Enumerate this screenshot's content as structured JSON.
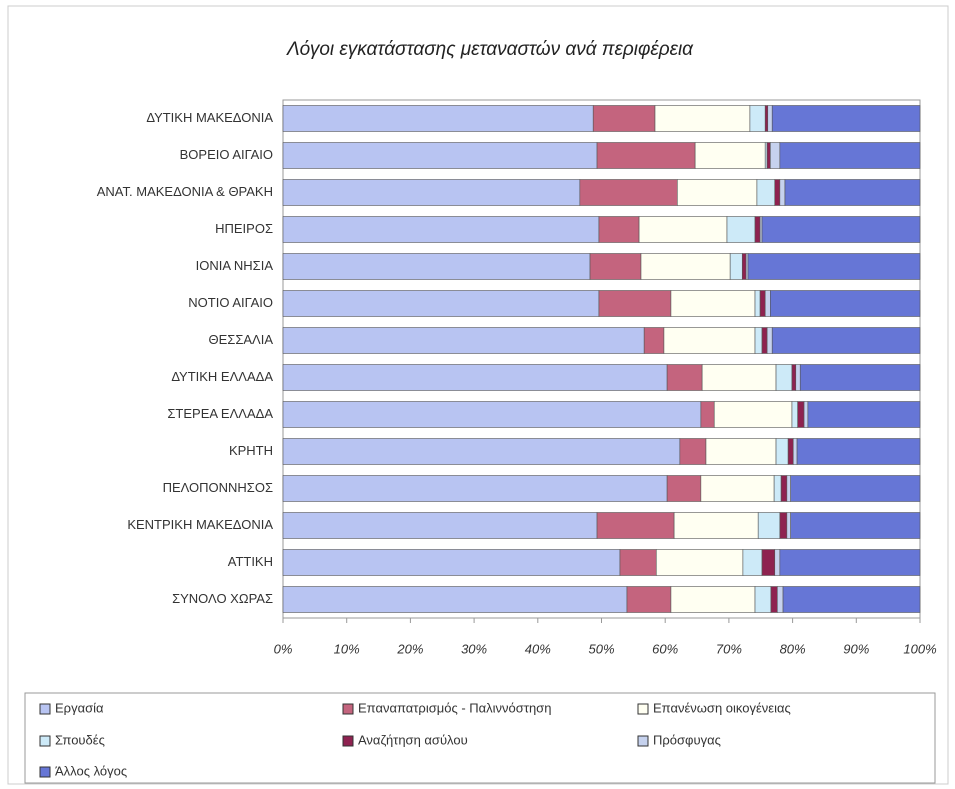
{
  "chart_data": {
    "type": "stacked_bar_horizontal",
    "title": "Λόγοι εγκατάστασης μεταναστών ανά περιφέρεια",
    "categories": [
      "ΔΥΤΙΚΗ ΜΑΚΕΔΟΝΙΑ",
      "ΒΟΡΕΙΟ ΑΙΓΑΙΟ",
      "ΑΝΑΤ. ΜΑΚΕΔΟΝΙΑ & ΘΡΑΚΗ",
      "ΗΠΕΙΡΟΣ",
      "ΙΟΝΙΑ ΝΗΣΙΑ",
      "ΝΟΤΙΟ ΑΙΓΑΙΟ",
      "ΘΕΣΣΑΛΙΑ",
      "ΔΥΤΙΚΗ ΕΛΛΑΔΑ",
      "ΣΤΕΡΕΑ ΕΛΛΑΔΑ",
      "ΚΡΗΤΗ",
      "ΠΕΛΟΠΟΝΝΗΣΟΣ",
      "ΚΕΝΤΡΙΚΗ ΜΑΚΕΔΟΝΙΑ",
      "ΑΤΤΙΚΗ",
      "ΣΥΝΟΛΟ ΧΩΡΑΣ"
    ],
    "series": [
      {
        "name": "Εργασία",
        "color": "#b8c4f2",
        "values": [
          48.7,
          49.3,
          46.6,
          49.6,
          48.2,
          49.6,
          56.7,
          60.3,
          65.6,
          62.3,
          60.3,
          49.3,
          52.9,
          54.0
        ]
      },
      {
        "name": "Επαναπατρισμός - Παλιννόστηση",
        "color": "#c4647e",
        "values": [
          9.7,
          15.4,
          15.3,
          6.3,
          8.0,
          11.3,
          3.1,
          5.5,
          2.1,
          4.1,
          5.3,
          12.1,
          5.7,
          6.9
        ]
      },
      {
        "name": "Επανένωση οικογένειας",
        "color": "#fffff2",
        "values": [
          14.9,
          11.0,
          12.5,
          13.8,
          14.0,
          13.2,
          14.3,
          11.6,
          12.2,
          11.0,
          11.5,
          13.2,
          13.6,
          13.2
        ]
      },
      {
        "name": "Σπουδές",
        "color": "#cdeaf8",
        "values": [
          2.4,
          0.3,
          2.8,
          4.4,
          1.9,
          0.8,
          1.1,
          2.5,
          0.9,
          1.9,
          1.1,
          3.4,
          3.0,
          2.5
        ]
      },
      {
        "name": "Αναζήτηση ασύλου",
        "color": "#8e2250",
        "values": [
          0.4,
          0.5,
          0.8,
          0.8,
          0.6,
          0.8,
          0.8,
          0.6,
          1.0,
          0.8,
          0.9,
          1.1,
          2.0,
          1.0
        ]
      },
      {
        "name": "Πρόσφυγας",
        "color": "#c6d2ee",
        "values": [
          0.7,
          1.5,
          0.8,
          0.3,
          0.3,
          0.8,
          0.8,
          0.7,
          0.6,
          0.6,
          0.6,
          0.6,
          0.8,
          0.9
        ]
      },
      {
        "name": "Άλλος λόγος",
        "color": "#6676d6",
        "values": [
          23.2,
          22.0,
          21.2,
          24.8,
          27.0,
          23.5,
          23.2,
          18.8,
          17.6,
          19.3,
          20.3,
          20.3,
          22.0,
          21.5
        ]
      }
    ],
    "xlim": [
      0,
      100
    ],
    "xticks": [
      {
        "value": 0,
        "label": "0%"
      },
      {
        "value": 10,
        "label": "10%"
      },
      {
        "value": 20,
        "label": "20%"
      },
      {
        "value": 30,
        "label": "30%"
      },
      {
        "value": 40,
        "label": "40%"
      },
      {
        "value": 50,
        "label": "50%"
      },
      {
        "value": 60,
        "label": "60%"
      },
      {
        "value": 70,
        "label": "70%"
      },
      {
        "value": 80,
        "label": "80%"
      },
      {
        "value": 90,
        "label": "90%"
      },
      {
        "value": 100,
        "label": "100%"
      }
    ]
  }
}
